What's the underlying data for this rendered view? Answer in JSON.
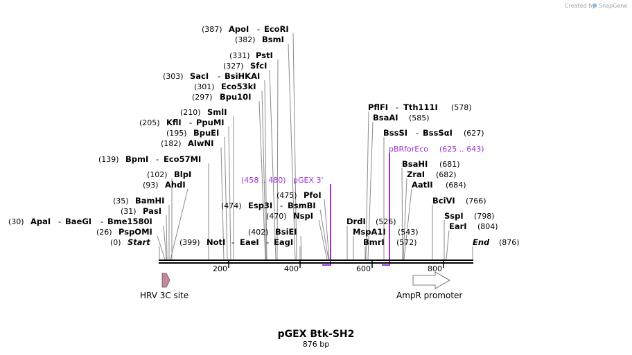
{
  "brand": {
    "created_by": "Created by",
    "name": "SnapGene"
  },
  "map": {
    "title": "pGEX Btk-SH2",
    "length_label": "876 bp",
    "ticks": [
      "200",
      "400",
      "600",
      "800"
    ]
  },
  "sites": {
    "apoi_ecori": {
      "pos": "(387)",
      "a": "ApoI",
      "sep": "-",
      "b": "EcoRI"
    },
    "bsmi": {
      "pos": "(382)",
      "a": "BsmI"
    },
    "psti": {
      "pos": "(331)",
      "a": "PstI"
    },
    "sfci": {
      "pos": "(327)",
      "a": "SfcI"
    },
    "saci_bsihkai": {
      "pos": "(303)",
      "a": "SacI",
      "sep": "-",
      "b": "BsiHKAI"
    },
    "eco53ki": {
      "pos": "(301)",
      "a": "Eco53kI"
    },
    "bpu10i": {
      "pos": "(297)",
      "a": "Bpu10I"
    },
    "smli": {
      "pos": "(210)",
      "a": "SmlI"
    },
    "kfli_ppumi": {
      "pos": "(205)",
      "a": "KflI",
      "sep": "-",
      "b": "PpuMI"
    },
    "bpuei": {
      "pos": "(195)",
      "a": "BpuEI"
    },
    "alwni": {
      "pos": "(182)",
      "a": "AlwNI"
    },
    "bpmi_eco57mi": {
      "pos": "(139)",
      "a": "BpmI",
      "sep": "-",
      "b": "Eco57MI"
    },
    "blpi": {
      "pos": "(102)",
      "a": "BlpI"
    },
    "ahdi": {
      "pos": "(93)",
      "a": "AhdI"
    },
    "bamhi": {
      "pos": "(35)",
      "a": "BamHI"
    },
    "pasi": {
      "pos": "(31)",
      "a": "PasI"
    },
    "apai_group": {
      "pos": "(30)",
      "a": "ApaI",
      "sep1": "-",
      "b": "BaeGI",
      "sep2": "-",
      "c": "Bme1580I"
    },
    "pspomi": {
      "pos": "(26)",
      "a": "PspOMI"
    },
    "start": {
      "pos": "(0)",
      "a": "Start"
    },
    "noti_group": {
      "pos": "(399)",
      "a": "NotI",
      "sep1": "-",
      "b": "EaeI",
      "sep2": "-",
      "c": "EagI"
    },
    "bsiei": {
      "pos": "(402)",
      "a": "BsiEI"
    },
    "nspi": {
      "pos": "(470)",
      "a": "NspI"
    },
    "esp3i_bsmbi": {
      "pos": "(474)",
      "a": "Esp3I",
      "sep": "-",
      "b": "BsmBI"
    },
    "pfoi": {
      "pos": "(475)",
      "a": "PfoI"
    },
    "pflfi_tth": {
      "a": "PflFI",
      "sep": "-",
      "b": "Tth111I",
      "pos": "(578)"
    },
    "bsaai": {
      "a": "BsaAI",
      "pos": "(585)"
    },
    "bsssi_bsssai": {
      "a": "BssSI",
      "sep": "-",
      "b": "BssSαI",
      "pos": "(627)"
    },
    "bsahi": {
      "a": "BsaHI",
      "pos": "(681)"
    },
    "zrai": {
      "a": "ZraI",
      "pos": "(682)"
    },
    "aatii": {
      "a": "AatII",
      "pos": "(684)"
    },
    "bcivi": {
      "a": "BciVI",
      "pos": "(766)"
    },
    "sspi": {
      "a": "SspI",
      "pos": "(798)"
    },
    "eari": {
      "a": "EarI",
      "pos": "(804)"
    },
    "end": {
      "a": "End",
      "pos": "(876)"
    },
    "drdi": {
      "a": "DrdI",
      "pos": "(526)"
    },
    "mspa1i": {
      "a": "MspA1I",
      "pos": "(543)"
    },
    "bmri": {
      "a": "BmrI",
      "pos": "(572)"
    }
  },
  "primers": {
    "pgex3": {
      "range": "(458 .. 480)",
      "name": "pGEX 3'"
    },
    "pbrfor": {
      "name": "pBRforEco",
      "range": "(625 .. 643)"
    }
  },
  "features": {
    "hrv": {
      "name": "HRV 3C site"
    },
    "ampr": {
      "name": "AmpR promoter"
    }
  },
  "colors": {
    "primer": "#9b30d9",
    "hrv_fill": "#c9879b",
    "backbone": "#000000"
  }
}
